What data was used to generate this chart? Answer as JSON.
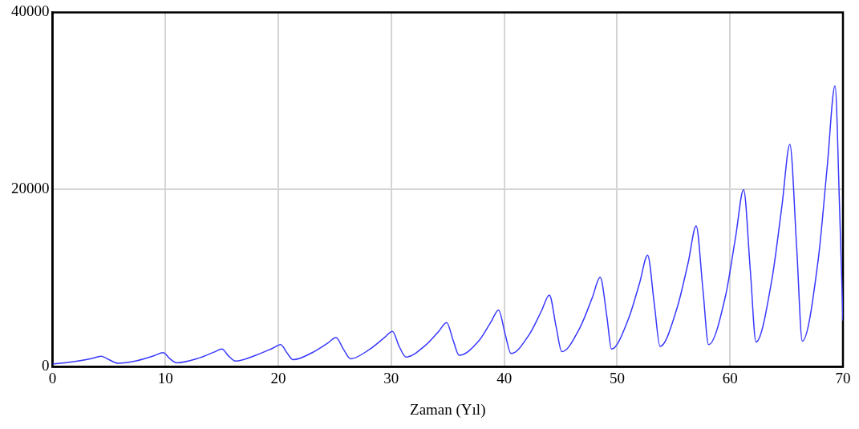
{
  "chart_data": {
    "type": "line",
    "xlabel": "Zaman (Yıl)",
    "series": [
      {
        "color": "#3838ff",
        "x": [
          0,
          2,
          3.5,
          4.3,
          5,
          5.8,
          7.5,
          9,
          9.8,
          10.4,
          11,
          13,
          14.3,
          15,
          15.6,
          16.2,
          18,
          19.5,
          20.2,
          20.8,
          21.3,
          23,
          24.4,
          25.1,
          25.8,
          26.4,
          28,
          29.4,
          30.1,
          30.7,
          31.3,
          33,
          34.2,
          34.9,
          35.5,
          36,
          37.8,
          38.8,
          39.5,
          40.1,
          40.6,
          42.2,
          43.3,
          44,
          44.6,
          45.1,
          46.7,
          47.8,
          48.5,
          49.1,
          49.5,
          51,
          52,
          52.7,
          53.3,
          53.8,
          55.3,
          56.3,
          57,
          57.6,
          58.1,
          59.6,
          60.5,
          61.2,
          61.8,
          62.3,
          63.7,
          64.6,
          65.3,
          65.9,
          66.4,
          67.8,
          68.6,
          69.3,
          69.7,
          70
        ],
        "values": [
          300,
          600,
          950,
          1200,
          800,
          400,
          700,
          1250,
          1600,
          900,
          450,
          1000,
          1650,
          2000,
          1200,
          650,
          1300,
          2100,
          2500,
          1500,
          800,
          1600,
          2700,
          3300,
          1900,
          900,
          1900,
          3300,
          4000,
          2300,
          1100,
          2400,
          4000,
          5000,
          2900,
          1300,
          3000,
          5000,
          6400,
          3600,
          1500,
          3600,
          6300,
          8100,
          4500,
          1700,
          4400,
          7800,
          10100,
          5600,
          2000,
          5400,
          9500,
          12600,
          7000,
          2300,
          6600,
          11800,
          15900,
          8700,
          2500,
          8000,
          14700,
          20000,
          10800,
          2800,
          9800,
          18200,
          25100,
          13500,
          2900,
          12000,
          22500,
          31700,
          18000,
          5200
        ]
      }
    ],
    "xlim": [
      0,
      70
    ],
    "xticks": [
      0,
      10,
      20,
      30,
      40,
      50,
      60,
      70
    ],
    "ylim": [
      0,
      40000
    ],
    "yticks": [
      0,
      20000,
      40000
    ],
    "grid": true,
    "legend": false,
    "marker": "none",
    "line_style": "solid"
  }
}
